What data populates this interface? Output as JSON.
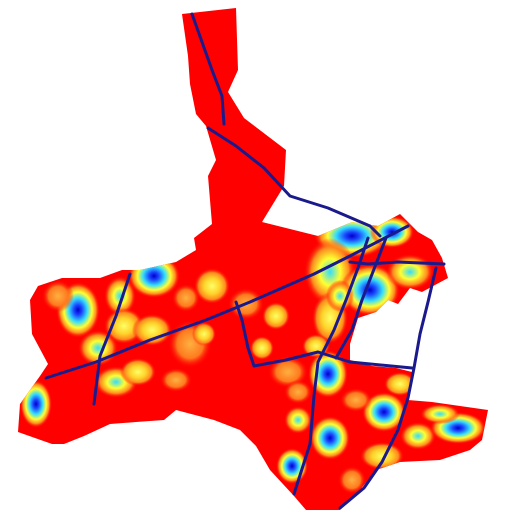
{
  "map": {
    "type": "heatmap-density-surface",
    "palette": {
      "background": "#ffffff",
      "high": "#ff0000",
      "orange": "#ff8a1e",
      "yellow": "#ffff33",
      "cyan": "#33ddff",
      "blue": "#1a44ff",
      "deep_blue": "#0000c8",
      "route": "#1a1a8c"
    },
    "legend": [],
    "labels": []
  }
}
